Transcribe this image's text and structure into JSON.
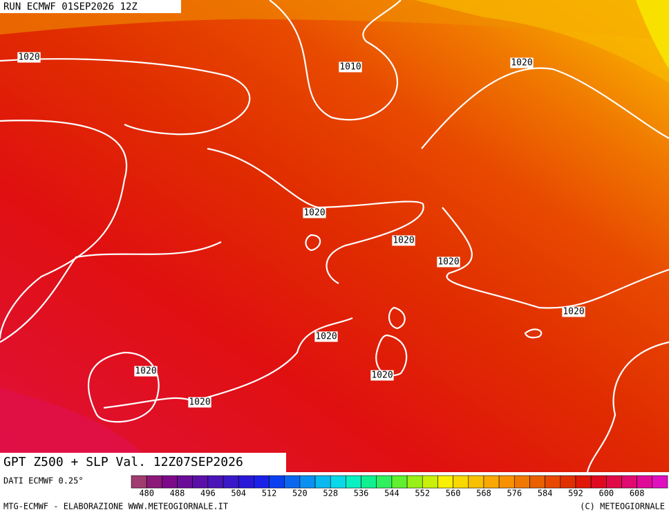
{
  "header": {
    "run": "RUN ECMWF 01SEP2026 12Z"
  },
  "title": "GPT Z500 + SLP Val. 12Z07SEP2026",
  "source": "DATI ECMWF 0.25°",
  "isobars": {
    "labels": [
      "1020",
      "1010",
      "1020",
      "1020",
      "1020",
      "1020",
      "1020",
      "1020",
      "1020",
      "1020",
      "1020"
    ]
  },
  "colorbar": {
    "labels": [
      480,
      488,
      496,
      504,
      512,
      520,
      528,
      536,
      544,
      552,
      560,
      568,
      576,
      584,
      592,
      600,
      608
    ],
    "colors": [
      "#a03c70",
      "#8c1878",
      "#7c0a88",
      "#6a0c98",
      "#5a10a8",
      "#4a14b8",
      "#3a18c8",
      "#2a18d8",
      "#1a20e8",
      "#0a40f0",
      "#0a68f0",
      "#0a90f0",
      "#0ab8f0",
      "#0ad8e8",
      "#0af0c0",
      "#10f090",
      "#30f060",
      "#60f030",
      "#98f018",
      "#c8f008",
      "#f8f000",
      "#f8d800",
      "#f8c000",
      "#f8a800",
      "#f89000",
      "#f07800",
      "#e86000",
      "#e84800",
      "#e03000",
      "#e01808",
      "#e00a20",
      "#e00a48",
      "#e00a70",
      "#e00a98",
      "#e010c0"
    ]
  },
  "footer": {
    "left": "MTG-ECMWF - ELABORAZIONE WWW.METEOGIORNALE.IT",
    "right": "(C) METEOGIORNALE"
  }
}
